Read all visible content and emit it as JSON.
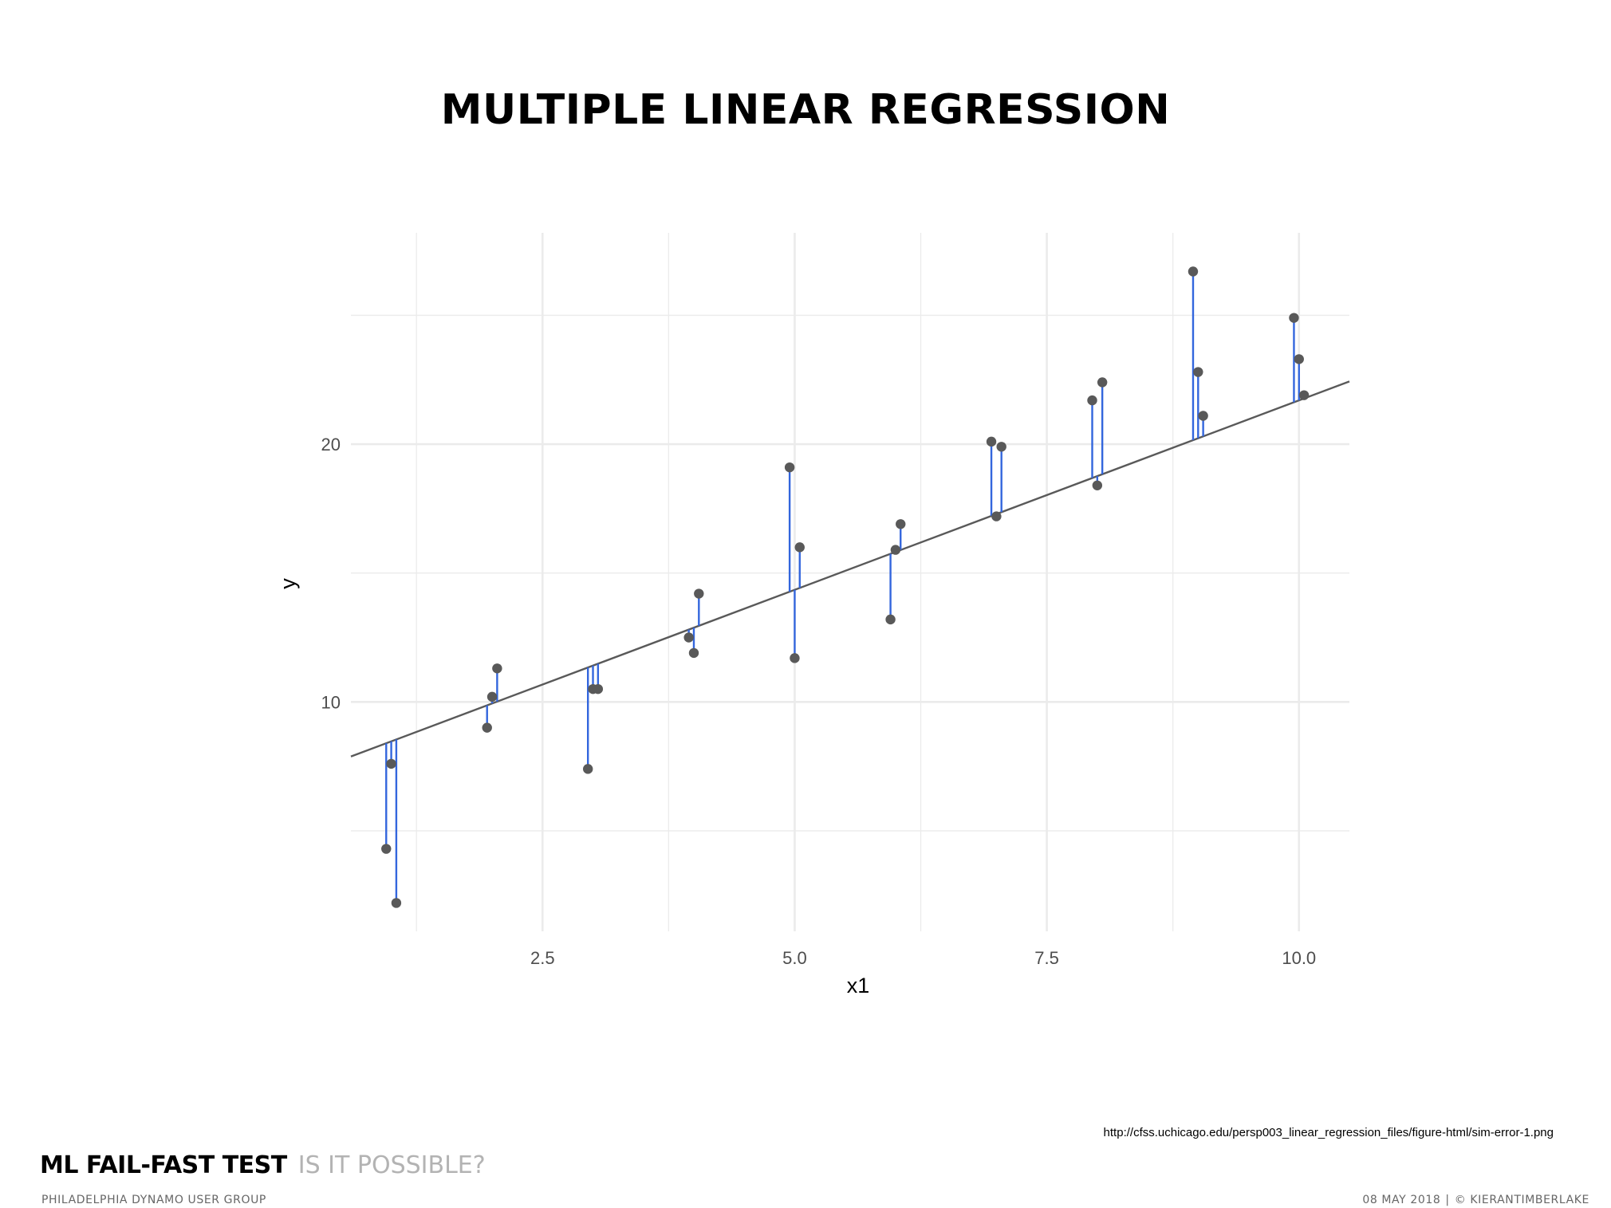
{
  "page": {
    "title": "MULTIPLE LINEAR REGRESSION",
    "source_url": "http://cfss.uchicago.edu/persp003_linear_regression_files/figure-html/sim-error-1.png",
    "footer": {
      "title_bold": "ML FAIL-FAST TEST",
      "title_light": "IS IT POSSIBLE?",
      "subtitle": "PHILADELPHIA DYNAMO USER GROUP",
      "date": "08 MAY 2018",
      "separator": "|",
      "credit": "© KIERANTIMBERLAKE"
    }
  },
  "chart_data": {
    "type": "scatter",
    "xlabel": "x1",
    "ylabel": "y",
    "xlim": [
      0.6,
      10.5
    ],
    "ylim": [
      1.1,
      28.2
    ],
    "xticks": [
      2.5,
      5.0,
      7.5,
      10.0
    ],
    "xtick_labels": [
      "2.5",
      "5.0",
      "7.5",
      "10.0"
    ],
    "yticks": [
      10,
      20
    ],
    "ytick_labels": [
      "10",
      "20"
    ],
    "grid": true,
    "colors": {
      "points": "#595959",
      "residuals": "#3366dd",
      "fit_line": "#595959",
      "grid": "#ebebeb"
    },
    "fit_line": {
      "intercept": 7.0,
      "slope": 1.47
    },
    "points": [
      {
        "x": 0.95,
        "y": 4.3
      },
      {
        "x": 1.0,
        "y": 7.6
      },
      {
        "x": 1.05,
        "y": 2.2
      },
      {
        "x": 1.95,
        "y": 9.0
      },
      {
        "x": 2.0,
        "y": 10.2
      },
      {
        "x": 2.05,
        "y": 11.3
      },
      {
        "x": 2.95,
        "y": 7.4
      },
      {
        "x": 3.0,
        "y": 10.5
      },
      {
        "x": 3.05,
        "y": 10.5
      },
      {
        "x": 3.95,
        "y": 12.5
      },
      {
        "x": 4.0,
        "y": 11.9
      },
      {
        "x": 4.05,
        "y": 14.2
      },
      {
        "x": 4.95,
        "y": 19.1
      },
      {
        "x": 5.0,
        "y": 11.7
      },
      {
        "x": 5.05,
        "y": 16.0
      },
      {
        "x": 5.95,
        "y": 13.2
      },
      {
        "x": 6.0,
        "y": 15.9
      },
      {
        "x": 6.05,
        "y": 16.9
      },
      {
        "x": 6.95,
        "y": 20.1
      },
      {
        "x": 7.0,
        "y": 17.2
      },
      {
        "x": 7.05,
        "y": 19.9
      },
      {
        "x": 7.95,
        "y": 21.7
      },
      {
        "x": 8.0,
        "y": 18.4
      },
      {
        "x": 8.05,
        "y": 22.4
      },
      {
        "x": 8.95,
        "y": 26.7
      },
      {
        "x": 9.0,
        "y": 22.8
      },
      {
        "x": 9.05,
        "y": 21.1
      },
      {
        "x": 9.95,
        "y": 24.9
      },
      {
        "x": 10.0,
        "y": 23.3
      },
      {
        "x": 10.05,
        "y": 21.9
      }
    ]
  }
}
